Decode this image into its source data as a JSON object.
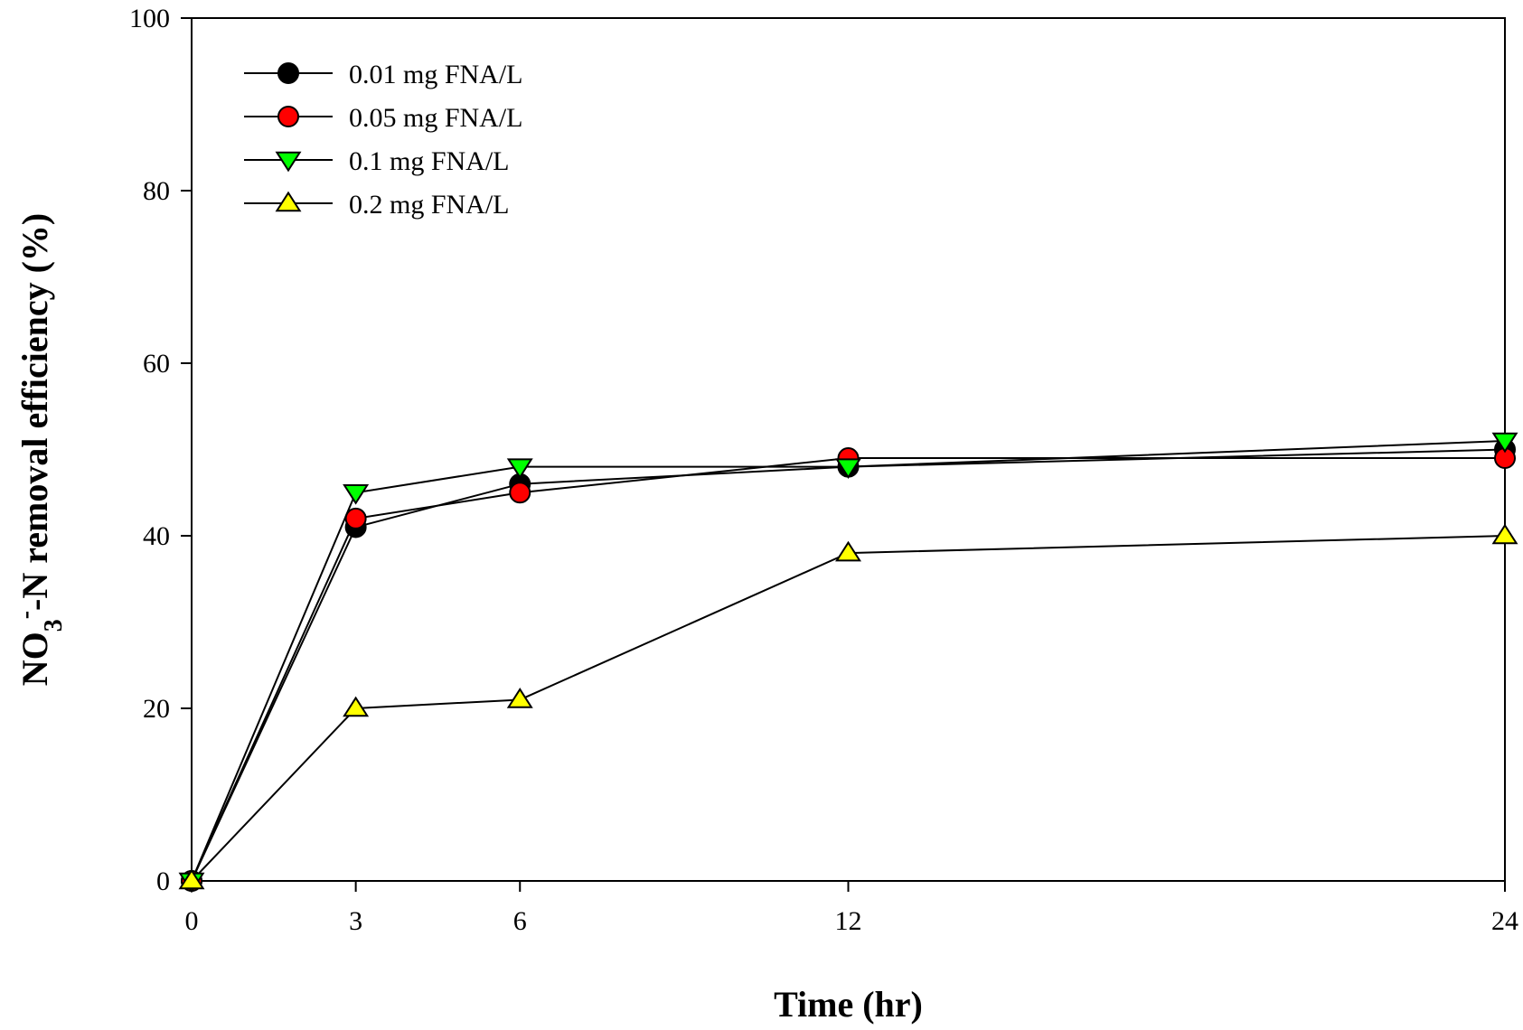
{
  "chart_data": {
    "type": "line",
    "x": [
      0,
      3,
      6,
      12,
      24
    ],
    "x_ticks": [
      "0",
      "3",
      "6",
      "12",
      "24"
    ],
    "y_ticks": [
      "0",
      "20",
      "40",
      "60",
      "80",
      "100"
    ],
    "xlim": [
      0,
      24
    ],
    "ylim": [
      0,
      100
    ],
    "xlabel": "Time (hr)",
    "ylabel_parts": {
      "main": "NO",
      "subscript": "3",
      "superscript": "-",
      "rest": "-N removal efficiency (%)"
    },
    "grid": false,
    "legend_position": "top-left",
    "series": [
      {
        "name": "0.01 mg FNA/L",
        "marker": "circle",
        "color": "#000000",
        "values": [
          0,
          41,
          46,
          48,
          50
        ]
      },
      {
        "name": "0.05 mg FNA/L",
        "marker": "circle",
        "color": "#ff0000",
        "values": [
          0,
          42,
          45,
          49,
          49
        ]
      },
      {
        "name": "0.1 mg FNA/L",
        "marker": "triangle-down",
        "color": "#00ff00",
        "values": [
          0,
          45,
          48,
          48,
          51
        ]
      },
      {
        "name": "0.2 mg FNA/L",
        "marker": "triangle-up",
        "color": "#ffff00",
        "values": [
          0,
          20,
          21,
          38,
          40
        ]
      }
    ]
  }
}
